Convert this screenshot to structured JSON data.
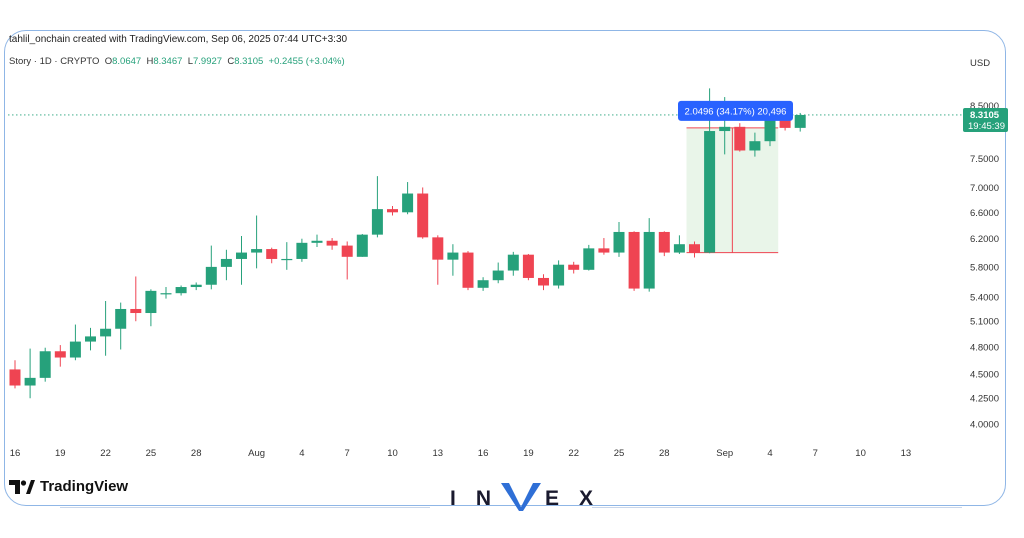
{
  "header": {
    "credit": "tahlil_onchain created with TradingView.com, Sep 06, 2025 07:44 UTC+3:30",
    "symbol": "Story · 1D · CRYPTO",
    "o_label": "O",
    "o_val": "8.0647",
    "h_label": "H",
    "h_val": "8.3467",
    "l_label": "L",
    "l_val": "7.9927",
    "c_label": "C",
    "c_val": "8.3105",
    "change": "+0.2455 (+3.04%)",
    "currency": "USD"
  },
  "price_tag": {
    "price": "8.3105",
    "countdown": "19:45:39"
  },
  "measure_label": "2.0496 (34.17%) 20,496",
  "branding": {
    "tradingview": "TradingView",
    "invex": [
      "I",
      "N",
      "V",
      "E",
      "X"
    ]
  },
  "colors": {
    "up": "#26a17b",
    "down": "#ef4452",
    "accent": "#2962ff",
    "measure_fill": "#e3f3e3"
  },
  "chart_data": {
    "type": "candlestick",
    "y_scale": "log",
    "ylim": [
      3.85,
      9.2
    ],
    "y_ticks": [
      "8.5000",
      "7.5000",
      "7.0000",
      "6.6000",
      "6.2000",
      "5.8000",
      "5.4000",
      "5.1000",
      "4.8000",
      "4.5000",
      "4.2500",
      "4.0000"
    ],
    "x_ticks": [
      {
        "label": "16",
        "date": "2025-07-16"
      },
      {
        "label": "19",
        "date": "2025-07-19"
      },
      {
        "label": "22",
        "date": "2025-07-22"
      },
      {
        "label": "25",
        "date": "2025-07-25"
      },
      {
        "label": "28",
        "date": "2025-07-28"
      },
      {
        "label": "Aug",
        "date": "2025-08-01"
      },
      {
        "label": "4",
        "date": "2025-08-04"
      },
      {
        "label": "7",
        "date": "2025-08-07"
      },
      {
        "label": "10",
        "date": "2025-08-10"
      },
      {
        "label": "13",
        "date": "2025-08-13"
      },
      {
        "label": "16",
        "date": "2025-08-16"
      },
      {
        "label": "19",
        "date": "2025-08-19"
      },
      {
        "label": "22",
        "date": "2025-08-22"
      },
      {
        "label": "25",
        "date": "2025-08-25"
      },
      {
        "label": "28",
        "date": "2025-08-28"
      },
      {
        "label": "Sep",
        "date": "2025-09-01"
      },
      {
        "label": "4",
        "date": "2025-09-04"
      },
      {
        "label": "7",
        "date": "2025-09-07"
      },
      {
        "label": "10",
        "date": "2025-09-10"
      },
      {
        "label": "13",
        "date": "2025-09-13"
      }
    ],
    "candles": [
      {
        "date": "2025-07-16",
        "o": 4.55,
        "h": 4.65,
        "l": 4.35,
        "c": 4.38
      },
      {
        "date": "2025-07-17",
        "o": 4.38,
        "h": 4.78,
        "l": 4.25,
        "c": 4.46
      },
      {
        "date": "2025-07-18",
        "o": 4.46,
        "h": 4.79,
        "l": 4.42,
        "c": 4.75
      },
      {
        "date": "2025-07-19",
        "o": 4.75,
        "h": 4.82,
        "l": 4.58,
        "c": 4.68
      },
      {
        "date": "2025-07-20",
        "o": 4.68,
        "h": 5.06,
        "l": 4.65,
        "c": 4.86
      },
      {
        "date": "2025-07-21",
        "o": 4.86,
        "h": 5.02,
        "l": 4.76,
        "c": 4.92
      },
      {
        "date": "2025-07-22",
        "o": 4.92,
        "h": 5.35,
        "l": 4.7,
        "c": 5.01
      },
      {
        "date": "2025-07-23",
        "o": 5.01,
        "h": 5.33,
        "l": 4.77,
        "c": 5.25
      },
      {
        "date": "2025-07-24",
        "o": 5.25,
        "h": 5.67,
        "l": 5.1,
        "c": 5.2
      },
      {
        "date": "2025-07-25",
        "o": 5.2,
        "h": 5.5,
        "l": 5.04,
        "c": 5.48
      },
      {
        "date": "2025-07-26",
        "o": 5.45,
        "h": 5.53,
        "l": 5.38,
        "c": 5.45
      },
      {
        "date": "2025-07-27",
        "o": 5.45,
        "h": 5.55,
        "l": 5.42,
        "c": 5.53
      },
      {
        "date": "2025-07-28",
        "o": 5.53,
        "h": 5.59,
        "l": 5.49,
        "c": 5.56
      },
      {
        "date": "2025-07-29",
        "o": 5.56,
        "h": 6.1,
        "l": 5.5,
        "c": 5.8
      },
      {
        "date": "2025-07-30",
        "o": 5.8,
        "h": 6.04,
        "l": 5.62,
        "c": 5.91
      },
      {
        "date": "2025-07-31",
        "o": 5.91,
        "h": 6.24,
        "l": 5.56,
        "c": 6.0
      },
      {
        "date": "2025-08-01",
        "o": 6.0,
        "h": 6.55,
        "l": 5.78,
        "c": 6.05
      },
      {
        "date": "2025-08-02",
        "o": 6.05,
        "h": 6.07,
        "l": 5.85,
        "c": 5.91
      },
      {
        "date": "2025-08-03",
        "o": 5.91,
        "h": 6.15,
        "l": 5.76,
        "c": 5.91
      },
      {
        "date": "2025-08-04",
        "o": 5.91,
        "h": 6.2,
        "l": 5.87,
        "c": 6.14
      },
      {
        "date": "2025-08-05",
        "o": 6.14,
        "h": 6.26,
        "l": 6.08,
        "c": 6.17
      },
      {
        "date": "2025-08-06",
        "o": 6.17,
        "h": 6.21,
        "l": 6.04,
        "c": 6.1
      },
      {
        "date": "2025-08-07",
        "o": 6.1,
        "h": 6.16,
        "l": 5.63,
        "c": 5.94
      },
      {
        "date": "2025-08-08",
        "o": 5.94,
        "h": 6.27,
        "l": 5.94,
        "c": 6.26
      },
      {
        "date": "2025-08-09",
        "o": 6.26,
        "h": 7.19,
        "l": 6.22,
        "c": 6.65
      },
      {
        "date": "2025-08-10",
        "o": 6.65,
        "h": 6.7,
        "l": 6.55,
        "c": 6.6
      },
      {
        "date": "2025-08-11",
        "o": 6.6,
        "h": 7.09,
        "l": 6.57,
        "c": 6.9
      },
      {
        "date": "2025-08-12",
        "o": 6.9,
        "h": 7.0,
        "l": 6.2,
        "c": 6.22
      },
      {
        "date": "2025-08-13",
        "o": 6.22,
        "h": 6.25,
        "l": 5.56,
        "c": 5.9
      },
      {
        "date": "2025-08-14",
        "o": 5.9,
        "h": 6.12,
        "l": 5.68,
        "c": 6.0
      },
      {
        "date": "2025-08-15",
        "o": 6.0,
        "h": 6.02,
        "l": 5.49,
        "c": 5.52
      },
      {
        "date": "2025-08-16",
        "o": 5.52,
        "h": 5.66,
        "l": 5.48,
        "c": 5.62
      },
      {
        "date": "2025-08-17",
        "o": 5.62,
        "h": 5.86,
        "l": 5.58,
        "c": 5.75
      },
      {
        "date": "2025-08-18",
        "o": 5.75,
        "h": 6.01,
        "l": 5.68,
        "c": 5.97
      },
      {
        "date": "2025-08-19",
        "o": 5.97,
        "h": 5.98,
        "l": 5.62,
        "c": 5.65
      },
      {
        "date": "2025-08-20",
        "o": 5.65,
        "h": 5.7,
        "l": 5.49,
        "c": 5.55
      },
      {
        "date": "2025-08-21",
        "o": 5.55,
        "h": 5.89,
        "l": 5.51,
        "c": 5.83
      },
      {
        "date": "2025-08-22",
        "o": 5.83,
        "h": 5.87,
        "l": 5.71,
        "c": 5.76
      },
      {
        "date": "2025-08-23",
        "o": 5.76,
        "h": 6.11,
        "l": 5.75,
        "c": 6.06
      },
      {
        "date": "2025-08-24",
        "o": 6.06,
        "h": 6.21,
        "l": 5.97,
        "c": 6.0
      },
      {
        "date": "2025-08-25",
        "o": 6.0,
        "h": 6.45,
        "l": 5.94,
        "c": 6.3
      },
      {
        "date": "2025-08-26",
        "o": 6.3,
        "h": 6.31,
        "l": 5.48,
        "c": 5.51
      },
      {
        "date": "2025-08-27",
        "o": 5.51,
        "h": 6.51,
        "l": 5.47,
        "c": 6.3
      },
      {
        "date": "2025-08-28",
        "o": 6.3,
        "h": 6.31,
        "l": 5.95,
        "c": 6.0
      },
      {
        "date": "2025-08-29",
        "o": 6.0,
        "h": 6.25,
        "l": 5.98,
        "c": 6.12
      },
      {
        "date": "2025-08-30",
        "o": 6.12,
        "h": 6.16,
        "l": 5.93,
        "c": 6.0
      },
      {
        "date": "2025-08-31",
        "o": 6.0,
        "h": 8.85,
        "l": 5.99,
        "c": 8.0
      },
      {
        "date": "2025-09-01",
        "o": 8.0,
        "h": 8.67,
        "l": 7.57,
        "c": 8.08
      },
      {
        "date": "2025-09-02",
        "o": 8.08,
        "h": 8.15,
        "l": 7.62,
        "c": 7.64
      },
      {
        "date": "2025-09-03",
        "o": 7.64,
        "h": 7.97,
        "l": 7.53,
        "c": 7.81
      },
      {
        "date": "2025-09-04",
        "o": 7.81,
        "h": 8.3,
        "l": 7.72,
        "c": 8.22
      },
      {
        "date": "2025-09-05",
        "o": 8.22,
        "h": 8.31,
        "l": 8.01,
        "c": 8.06
      },
      {
        "date": "2025-09-06",
        "o": 8.06,
        "h": 8.35,
        "l": 7.99,
        "c": 8.31
      }
    ],
    "measure": {
      "start": "2025-08-30",
      "end": "2025-09-06",
      "from_price": 6.0,
      "to_price": 8.06
    },
    "last_price": 8.3105
  }
}
